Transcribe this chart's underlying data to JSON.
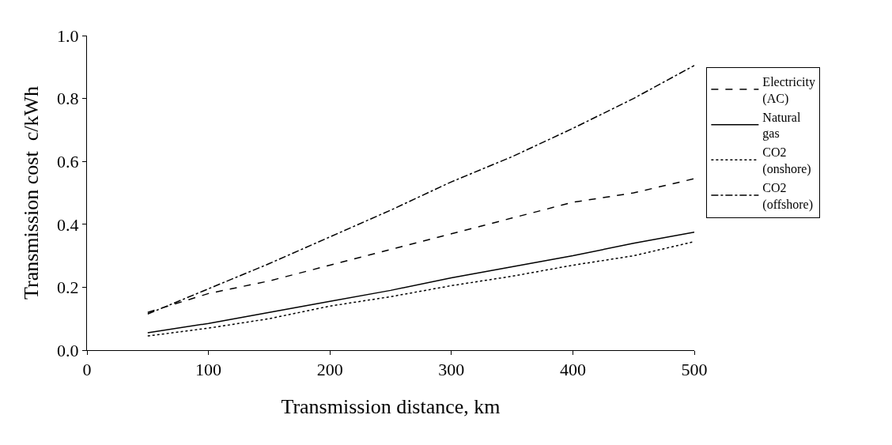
{
  "chart_data": {
    "type": "line",
    "xlabel": "Transmission distance, km",
    "ylabel": "Transmission cost  c/kWh",
    "x": [
      50,
      100,
      150,
      200,
      250,
      300,
      350,
      400,
      450,
      500
    ],
    "series": [
      {
        "name": "Electricity (AC)",
        "color": "#000000",
        "line_style": "dashed",
        "values": [
          0.12,
          0.18,
          0.22,
          0.27,
          0.32,
          0.37,
          0.42,
          0.47,
          0.5,
          0.545
        ]
      },
      {
        "name": "Natural gas",
        "color": "#000000",
        "line_style": "solid",
        "values": [
          0.055,
          0.085,
          0.12,
          0.155,
          0.19,
          0.23,
          0.265,
          0.3,
          0.34,
          0.375
        ]
      },
      {
        "name": "CO2 (onshore)",
        "color": "#000000",
        "line_style": "dotted",
        "values": [
          0.045,
          0.07,
          0.1,
          0.14,
          0.17,
          0.205,
          0.235,
          0.27,
          0.3,
          0.345
        ]
      },
      {
        "name": "CO2 (offshore)",
        "color": "#000000",
        "line_style": "dashdot",
        "values": [
          0.115,
          0.195,
          0.275,
          0.36,
          0.445,
          0.535,
          0.615,
          0.705,
          0.8,
          0.905
        ]
      }
    ],
    "xlim": [
      0,
      500
    ],
    "xticks": [
      0,
      100,
      200,
      300,
      400,
      500
    ],
    "ylim": [
      0,
      1
    ],
    "yticks": [
      {
        "value": 0,
        "label": "0.0"
      },
      {
        "value": 0.2,
        "label": "0.2"
      },
      {
        "value": 0.4,
        "label": "0.4"
      },
      {
        "value": 0.6,
        "label": "0.6"
      },
      {
        "value": 0.8,
        "label": "0.8"
      },
      {
        "value": 1,
        "label": "1.0"
      }
    ],
    "grid": false,
    "legend": "right",
    "marker": "none"
  }
}
